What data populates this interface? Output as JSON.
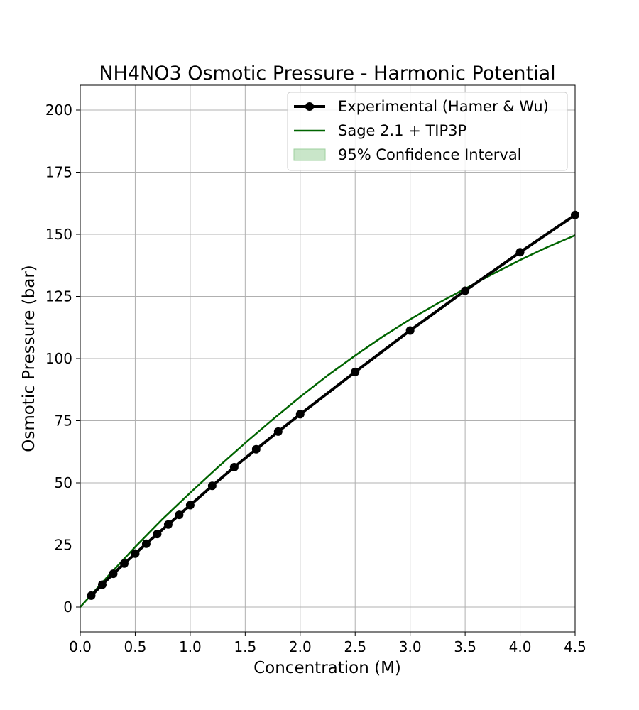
{
  "chart_data": {
    "type": "line",
    "title": "NH4NO3 Osmotic Pressure - Harmonic Potential",
    "xlabel": "Concentration (M)",
    "ylabel": "Osmotic Pressure (bar)",
    "xlim": [
      0.0,
      4.5
    ],
    "ylim": [
      -10,
      210
    ],
    "xticks": [
      0.0,
      0.5,
      1.0,
      1.5,
      2.0,
      2.5,
      3.0,
      3.5,
      4.0,
      4.5
    ],
    "xtick_labels": [
      "0.0",
      "0.5",
      "1.0",
      "1.5",
      "2.0",
      "2.5",
      "3.0",
      "3.5",
      "4.0",
      "4.5"
    ],
    "yticks": [
      0,
      25,
      50,
      75,
      100,
      125,
      150,
      175,
      200
    ],
    "ytick_labels": [
      "0",
      "25",
      "50",
      "75",
      "100",
      "125",
      "150",
      "175",
      "200"
    ],
    "grid": true,
    "legend_position": "top-right",
    "series": [
      {
        "name": "Experimental (Hamer & Wu)",
        "style": "line-marker",
        "color": "#000000",
        "x": [
          0.1,
          0.2,
          0.3,
          0.4,
          0.5,
          0.6,
          0.7,
          0.8,
          0.9,
          1.0,
          1.2,
          1.4,
          1.6,
          1.8,
          2.0,
          2.5,
          3.0,
          3.5,
          4.0,
          4.5
        ],
        "y": [
          4.6,
          9.0,
          13.4,
          17.5,
          21.5,
          25.5,
          29.4,
          33.2,
          37.1,
          41.0,
          48.8,
          56.3,
          63.5,
          70.6,
          77.6,
          94.6,
          111.3,
          127.3,
          142.8,
          157.8
        ]
      },
      {
        "name": "Sage 2.1 + TIP3P",
        "style": "line",
        "color": "#006400",
        "x": [
          0.0,
          0.25,
          0.5,
          0.75,
          1.0,
          1.25,
          1.5,
          1.75,
          2.0,
          2.25,
          2.5,
          2.75,
          3.0,
          3.25,
          3.5,
          3.75,
          4.0,
          4.25,
          4.5
        ],
        "y": [
          0.0,
          12.3,
          24.2,
          35.5,
          46.0,
          56.2,
          66.0,
          75.5,
          84.6,
          93.2,
          101.2,
          108.8,
          115.8,
          122.2,
          128.1,
          134.0,
          139.7,
          144.9,
          149.6
        ]
      },
      {
        "name": "95% Confidence Interval",
        "style": "band",
        "color": "#b2dbb2"
      }
    ]
  }
}
